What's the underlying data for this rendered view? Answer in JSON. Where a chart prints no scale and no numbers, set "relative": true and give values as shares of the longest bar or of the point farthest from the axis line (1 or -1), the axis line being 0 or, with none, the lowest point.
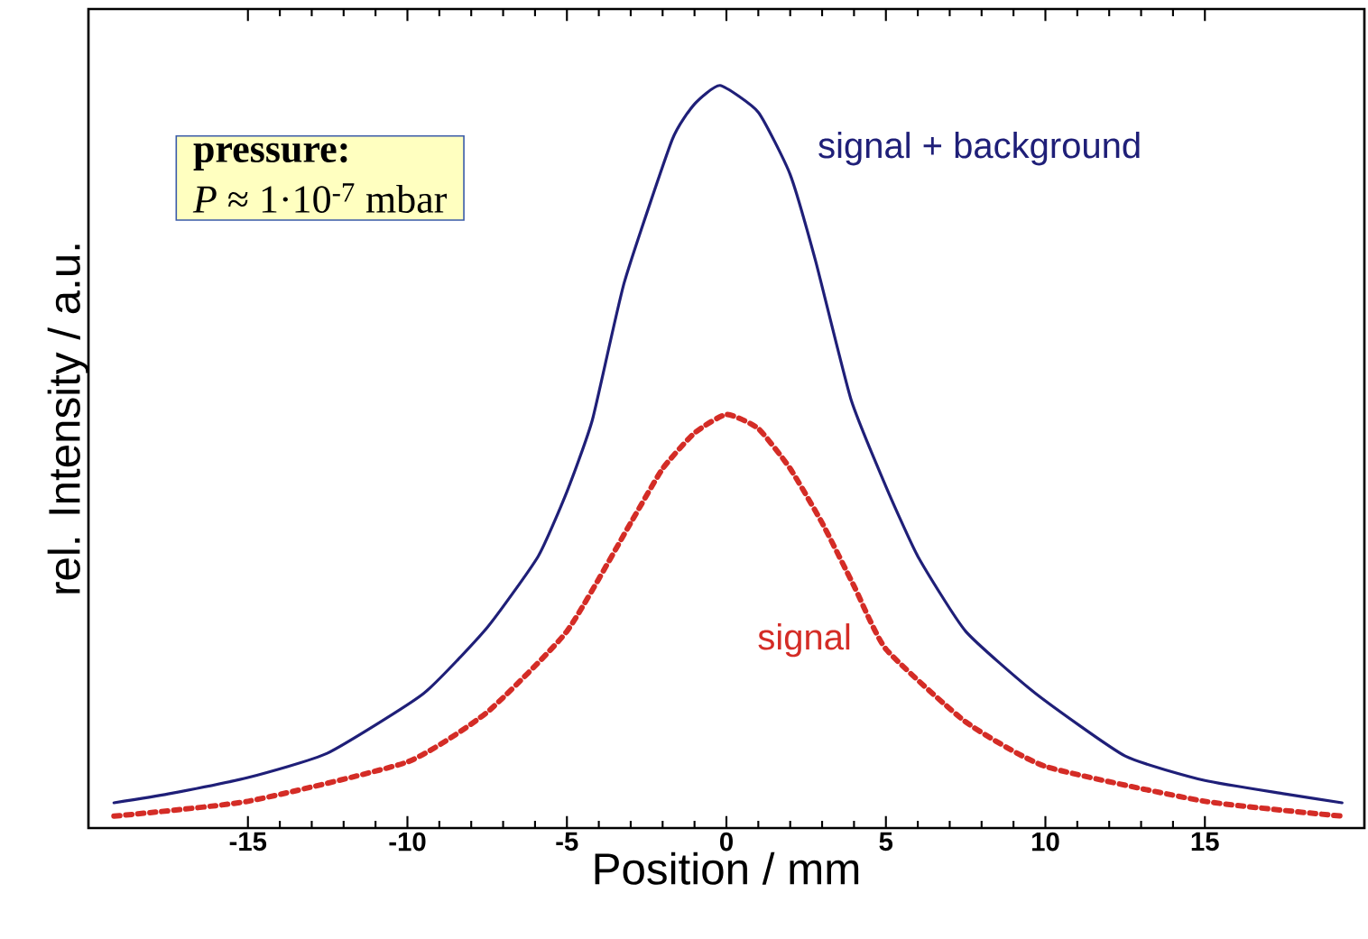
{
  "chart_data": {
    "type": "line",
    "relative": true,
    "xlabel": "Position / mm",
    "ylabel": "rel. Intensity / a.u.",
    "xlim": [
      -20,
      20
    ],
    "xticks": [
      -15,
      -10,
      -5,
      0,
      5,
      10,
      15
    ],
    "grid": false,
    "legend": false,
    "annotations": [
      "pressure:",
      "*P* ≈ 1·10$^{-7}$ mbar"
    ],
    "series": [
      {
        "name": "signal + background",
        "color": "#1f1f78",
        "line_style": "solid",
        "x": [
          -19.2,
          -17.5,
          -15,
          -12.5,
          -9.5,
          -7.5,
          -5.9,
          -5,
          -4.2,
          -3.2,
          -1.7,
          -1,
          -0.2,
          1,
          2,
          2.8,
          3.9,
          5,
          6,
          7.5,
          9.7,
          12.5,
          15,
          17.5,
          19.3
        ],
        "values": [
          0.034,
          0.046,
          0.068,
          0.101,
          0.181,
          0.27,
          0.366,
          0.453,
          0.55,
          0.735,
          0.927,
          0.975,
          1.0,
          0.964,
          0.88,
          0.763,
          0.578,
          0.46,
          0.366,
          0.265,
          0.181,
          0.097,
          0.064,
          0.046,
          0.034
        ]
      },
      {
        "name": "signal",
        "color": "#d42c26",
        "line_style": "dotted",
        "x": [
          -19.2,
          -15,
          -10,
          -7.5,
          -5,
          -3,
          -2,
          -1,
          0,
          1,
          2,
          3,
          4,
          5,
          7.5,
          10,
          15,
          19.3
        ],
        "values": [
          0.016,
          0.036,
          0.089,
          0.156,
          0.265,
          0.411,
          0.484,
          0.532,
          0.557,
          0.538,
          0.484,
          0.411,
          0.326,
          0.241,
          0.143,
          0.083,
          0.036,
          0.016
        ]
      }
    ]
  }
}
